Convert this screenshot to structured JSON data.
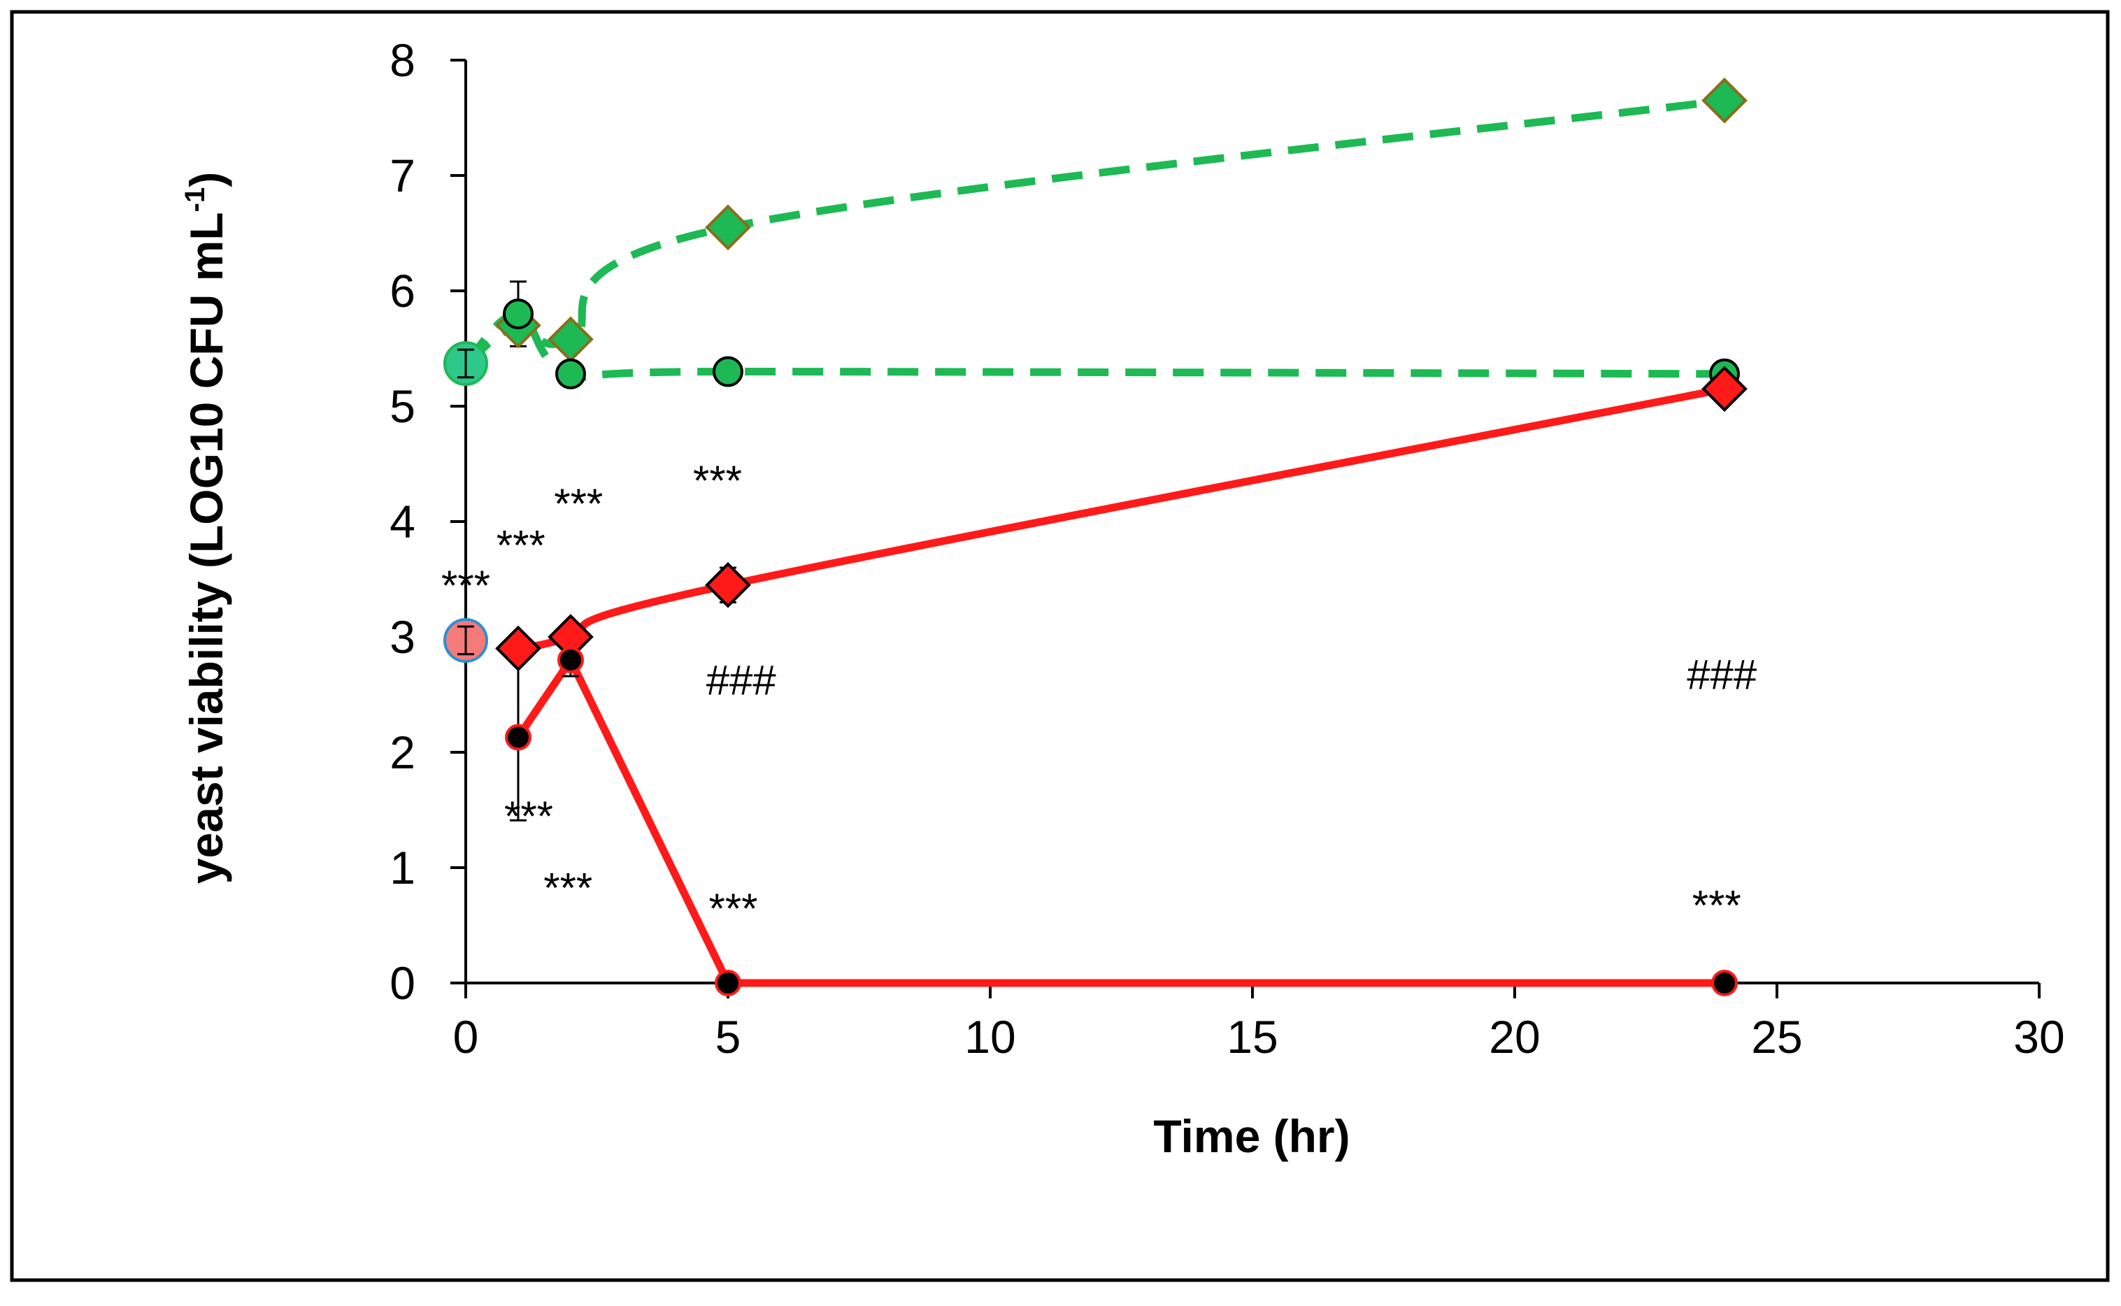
{
  "chart_data": {
    "type": "line",
    "title": "",
    "xlabel": "Time (hr)",
    "ylabel_main": "yeast viability (LOG10 CFU mL",
    "ylabel_sup": "-1",
    "ylabel_close": ")",
    "xlim": [
      0,
      30
    ],
    "ylim": [
      0,
      8
    ],
    "x_ticks": [
      0,
      5,
      10,
      15,
      20,
      25,
      30
    ],
    "y_ticks": [
      0,
      1,
      2,
      3,
      4,
      5,
      6,
      7,
      8
    ],
    "grid": false,
    "legend": "none",
    "colors": {
      "green": "#1db954",
      "red": "#ff1a1a",
      "black": "#000000",
      "diamond_edge_green": "#8a6d1a"
    },
    "series": [
      {
        "name": "green-diamond",
        "line": "dashed",
        "color": "#1db954",
        "marker": "diamond",
        "marker_fill": "#1db954",
        "marker_edge": "#8a6d1a",
        "x": [
          1,
          2,
          5,
          24
        ],
        "y": [
          5.7,
          5.58,
          6.55,
          7.65
        ],
        "err": [
          0.1,
          0.1,
          0.05,
          0.05
        ]
      },
      {
        "name": "green-circle",
        "line": "dashed",
        "color": "#1db954",
        "marker": "circle",
        "marker_fill": "#1db954",
        "marker_edge": "#000000",
        "x": [
          1,
          2,
          5,
          24
        ],
        "y": [
          5.8,
          5.28,
          5.3,
          5.28
        ],
        "err": [
          0.28,
          0.05,
          0.05,
          0.08
        ]
      },
      {
        "name": "red-diamond",
        "line": "solid",
        "color": "#ff1a1a",
        "marker": "diamond",
        "marker_fill": "#ff1a1a",
        "marker_edge": "#000000",
        "x": [
          1,
          2,
          5,
          24
        ],
        "y": [
          2.9,
          3.0,
          3.45,
          5.15
        ],
        "err": [
          0.05,
          0.12,
          0.15,
          0.03
        ]
      },
      {
        "name": "red-circle",
        "line": "solid",
        "color": "#ff1a1a",
        "marker": "circle",
        "marker_fill": "#000000",
        "marker_edge": "#ff1a1a",
        "x": [
          1,
          2,
          5,
          24
        ],
        "y": [
          2.13,
          2.8,
          0,
          0
        ],
        "err": [
          0.72,
          0.14,
          0,
          0
        ]
      }
    ],
    "start_points": [
      {
        "name": "start-green",
        "x": 0,
        "y": 5.37,
        "err": 0.12,
        "fill": "#2ec88a",
        "edge": "#1db954"
      },
      {
        "name": "start-red",
        "x": 0,
        "y": 2.97,
        "err": 0.12,
        "fill": "#f57a7a",
        "edge": "#2e8fd0"
      }
    ],
    "annotations": [
      {
        "text": "***",
        "x": 0.0,
        "y": 3.32
      },
      {
        "text": "***",
        "x": 1.05,
        "y": 3.67
      },
      {
        "text": "***",
        "x": 2.15,
        "y": 4.03
      },
      {
        "text": "***",
        "x": 4.8,
        "y": 4.23
      },
      {
        "text": "###",
        "x": 5.25,
        "y": 2.5
      },
      {
        "text": "###",
        "x": 23.95,
        "y": 2.55
      },
      {
        "text": "***",
        "x": 1.2,
        "y": 1.32
      },
      {
        "text": "***",
        "x": 1.95,
        "y": 0.7
      },
      {
        "text": "***",
        "x": 5.1,
        "y": 0.52
      },
      {
        "text": "***",
        "x": 23.85,
        "y": 0.55
      }
    ]
  }
}
